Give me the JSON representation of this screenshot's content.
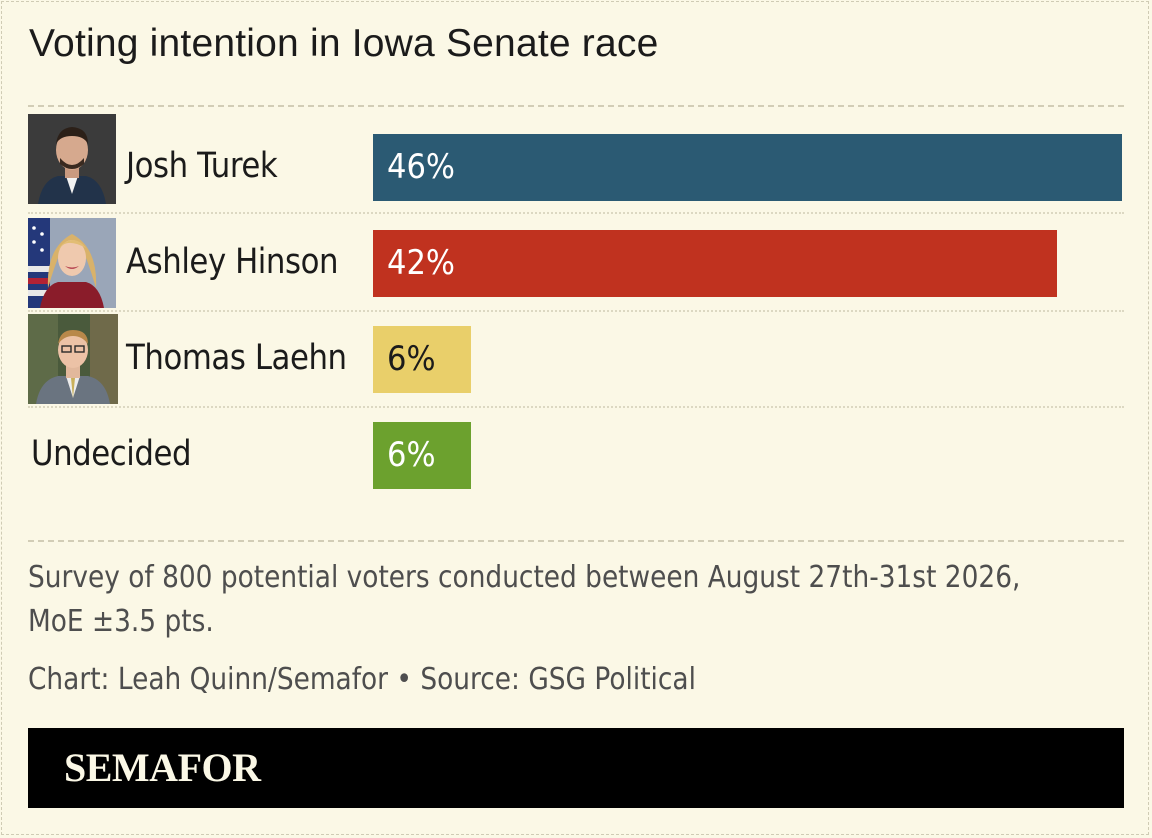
{
  "chart_data": {
    "type": "bar",
    "orientation": "horizontal",
    "title": "Voting intention in Iowa Senate race",
    "categories": [
      "Josh Turek",
      "Ashley Hinson",
      "Thomas Laehn",
      "Undecided"
    ],
    "values": [
      46,
      42,
      6,
      6
    ],
    "value_labels": [
      "46%",
      "42%",
      "6%",
      "6%"
    ],
    "colors": [
      "#2b5a73",
      "#c0321f",
      "#e9cf6a",
      "#6ca12e"
    ],
    "label_colors": [
      "#ffffff",
      "#ffffff",
      "#1b1b1b",
      "#ffffff"
    ],
    "xlim": [
      0,
      46
    ],
    "grid": false,
    "legend": "none"
  },
  "notes": {
    "survey_line1": "Survey of 800 potential voters conducted between August 27th-31st 2026,",
    "survey_line2": "MoE ±3.5 pts.",
    "credit": "Chart: Leah Quinn/Semafor • Source: GSG Political"
  },
  "brand": {
    "name": "SEMAFOR"
  },
  "photos": [
    "candidate-portrait",
    "candidate-portrait-flag",
    "candidate-portrait-office"
  ]
}
